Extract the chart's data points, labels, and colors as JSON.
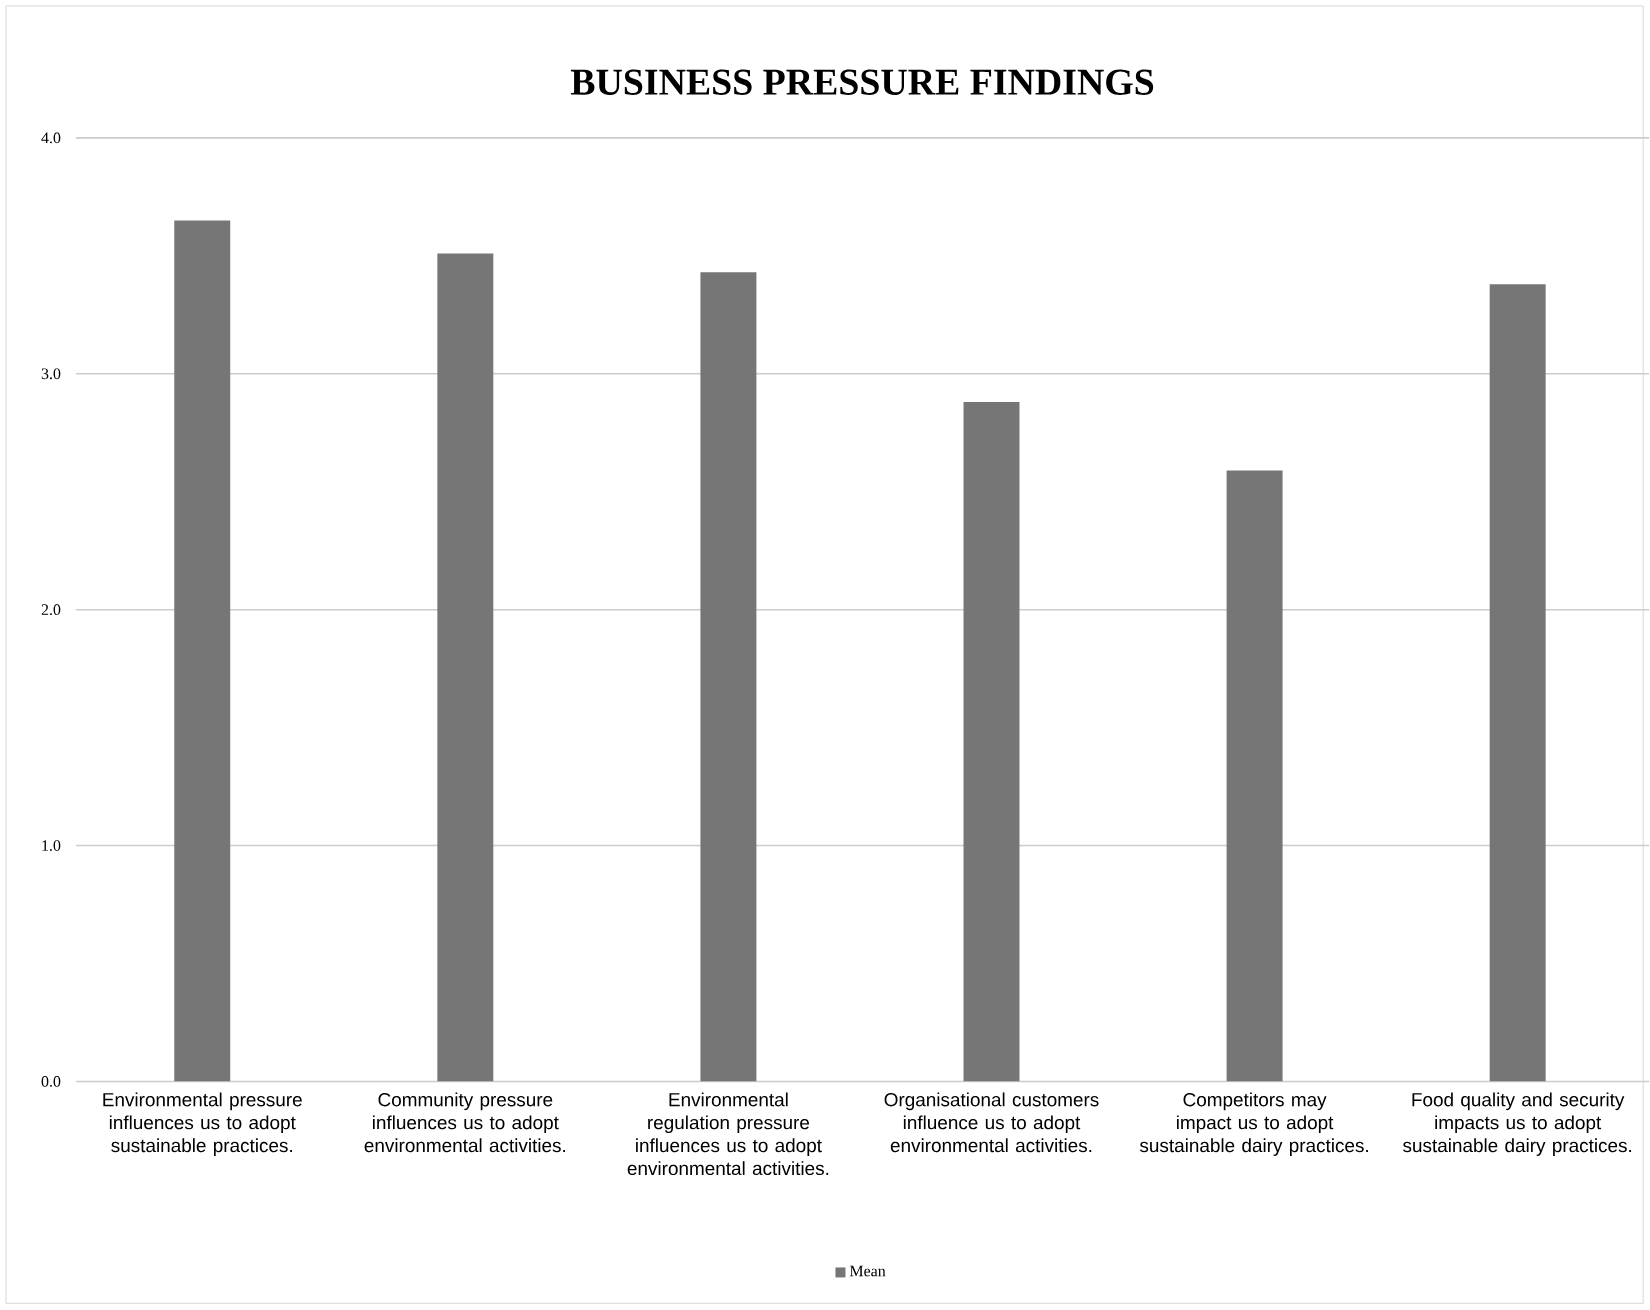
{
  "chart_data": {
    "type": "bar",
    "title": "BUSINESS PRESSURE FINDINGS",
    "categories": [
      "Environmental pressure influences us to adopt sustainable practices.",
      "Community pressure influences us to adopt environmental activities.",
      "Environmental regulation pressure influences us to adopt environmental activities.",
      "Organisational customers influence us to adopt environmental activities.",
      "Competitors may impact us to adopt sustainable dairy practices.",
      "Food quality and security impacts us to adopt sustainable dairy practices."
    ],
    "series": [
      {
        "name": "Mean",
        "color": "#767676",
        "values": [
          3.65,
          3.51,
          3.43,
          2.88,
          2.59,
          3.38
        ]
      }
    ],
    "ylim": [
      0,
      4
    ],
    "yticks": [
      {
        "value": 0,
        "label": "0.0"
      },
      {
        "value": 1,
        "label": "1.0"
      },
      {
        "value": 2,
        "label": "2.0"
      },
      {
        "value": 3,
        "label": "3.0"
      },
      {
        "value": 4,
        "label": "4.0"
      }
    ],
    "grid": "y",
    "legend": "bottom"
  }
}
